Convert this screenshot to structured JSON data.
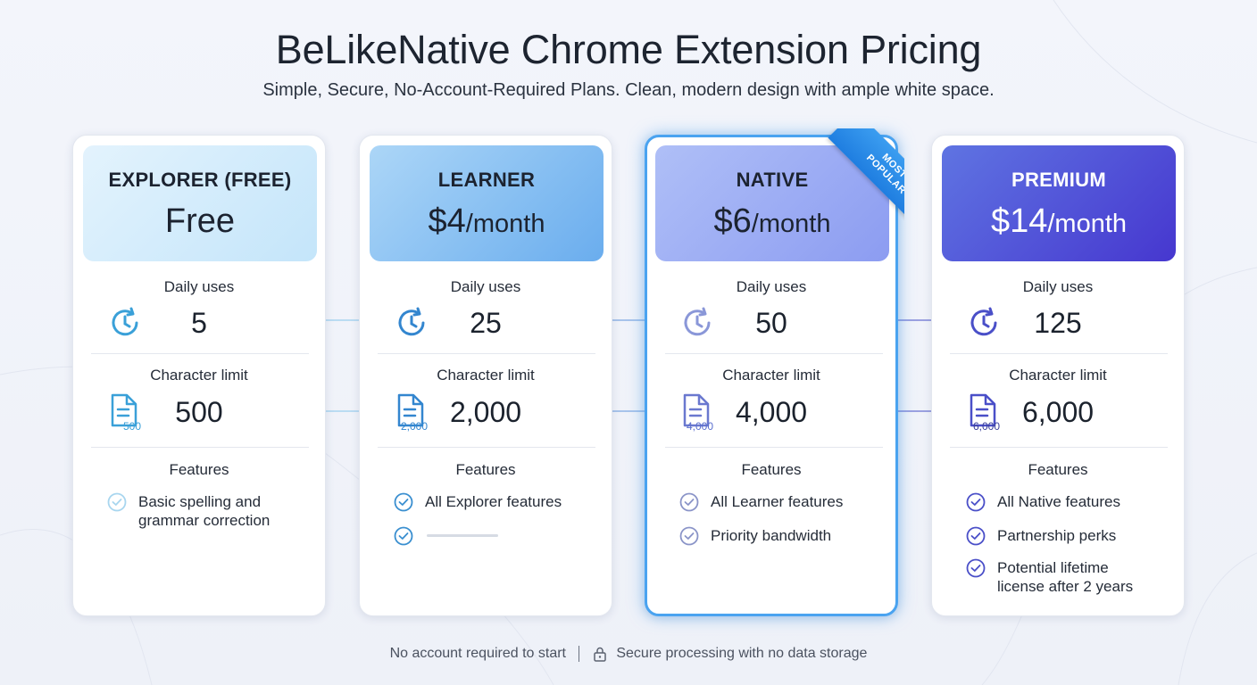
{
  "title": "BeLikeNative Chrome Extension Pricing",
  "subtitle": "Simple, Secure, No-Account-Required Plans. Clean, modern design with ample white space.",
  "labels": {
    "daily_uses": "Daily uses",
    "character_limit": "Character limit",
    "features": "Features"
  },
  "badge": {
    "line1": "MOST",
    "line2": "POPULAR"
  },
  "plans": [
    {
      "name": "EXPLORER (FREE)",
      "price": "Free",
      "period": "",
      "daily_uses": "5",
      "character_limit": "500",
      "doc_badge": "500",
      "features": [
        "Basic spelling and grammar correction"
      ],
      "accent": "#3aa0d8",
      "header_gradient": [
        "#dff1fc",
        "#c6e6fa"
      ]
    },
    {
      "name": "LEARNER",
      "price": "$4",
      "period": "/month",
      "daily_uses": "25",
      "character_limit": "2,000",
      "doc_badge": "2,000",
      "features": [
        "All Explorer features"
      ],
      "accent": "#3386cf",
      "header_gradient": [
        "#a7d4f6",
        "#6caeef"
      ]
    },
    {
      "name": "NATIVE",
      "price": "$6",
      "period": "/month",
      "daily_uses": "50",
      "character_limit": "4,000",
      "doc_badge": "4,000",
      "features": [
        "All Learner features",
        "Priority bandwidth"
      ],
      "accent": "#5a6fce",
      "header_gradient": [
        "#a9b9f6",
        "#8f9ef2"
      ]
    },
    {
      "name": "PREMIUM",
      "price": "$14",
      "period": "/month",
      "daily_uses": "125",
      "character_limit": "6,000",
      "doc_badge": "6,000",
      "features": [
        "All Native features",
        "Partnership perks",
        "Potential lifetime license after 2 years"
      ],
      "accent": "#4a4fc8",
      "header_gradient": [
        "#5a6fe0",
        "#4a3fd0"
      ]
    }
  ],
  "footer": {
    "left": "No account required to start",
    "right": "Secure processing with no data storage"
  },
  "icons": {
    "daily": "refresh-clock-icon",
    "chars": "document-icon",
    "feature": "check-circle-icon",
    "footer": "lock-icon"
  }
}
